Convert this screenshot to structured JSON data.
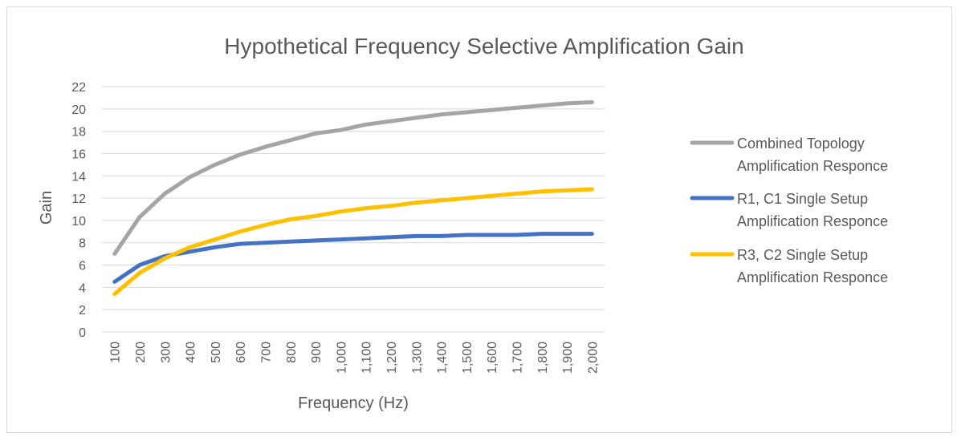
{
  "chart_data": {
    "type": "line",
    "title": "Hypothetical Frequency Selective Amplification Gain",
    "xlabel": "Frequency (Hz)",
    "ylabel": "Gain",
    "categories": [
      "100",
      "200",
      "300",
      "400",
      "500",
      "600",
      "700",
      "800",
      "900",
      "1,000",
      "1,100",
      "1,200",
      "1,300",
      "1,400",
      "1,500",
      "1,600",
      "1,700",
      "1,800",
      "1,900",
      "2,000"
    ],
    "ylim": [
      0,
      22
    ],
    "yticks": [
      "0",
      "2",
      "4",
      "6",
      "8",
      "10",
      "12",
      "14",
      "16",
      "18",
      "20",
      "22"
    ],
    "grid": "horizontal",
    "legend_position": "right",
    "series": [
      {
        "name_lines": [
          "Combined Topology",
          "Amplification Responce"
        ],
        "color": "#a5a5a5",
        "values": [
          7.0,
          10.3,
          12.4,
          13.9,
          15.0,
          15.9,
          16.6,
          17.2,
          17.8,
          18.1,
          18.6,
          18.9,
          19.2,
          19.5,
          19.7,
          19.9,
          20.1,
          20.3,
          20.5,
          20.6
        ]
      },
      {
        "name_lines": [
          "R1, C1 Single Setup",
          "Amplification Responce"
        ],
        "color": "#4472c4",
        "values": [
          4.5,
          6.0,
          6.8,
          7.2,
          7.6,
          7.9,
          8.0,
          8.1,
          8.2,
          8.3,
          8.4,
          8.5,
          8.6,
          8.6,
          8.7,
          8.7,
          8.7,
          8.8,
          8.8,
          8.8
        ]
      },
      {
        "name_lines": [
          "R3, C2 Single Setup",
          "Amplification Responce"
        ],
        "color": "#ffc000",
        "values": [
          3.4,
          5.3,
          6.6,
          7.6,
          8.3,
          9.0,
          9.6,
          10.1,
          10.4,
          10.8,
          11.1,
          11.3,
          11.6,
          11.8,
          12.0,
          12.2,
          12.4,
          12.6,
          12.7,
          12.8
        ]
      }
    ]
  }
}
